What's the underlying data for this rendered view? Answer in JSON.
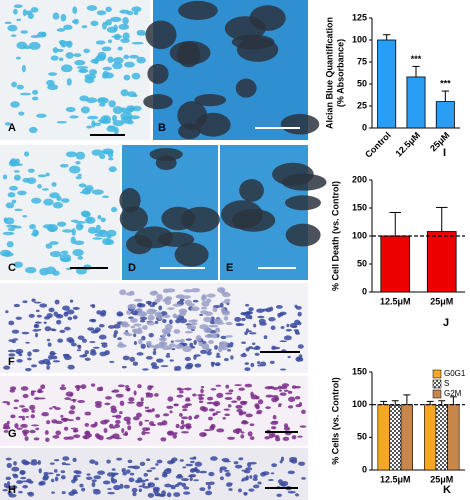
{
  "panel_labels": [
    "A",
    "B",
    "C",
    "D",
    "E",
    "F",
    "G",
    "H"
  ],
  "chart_data": [
    {
      "type": "bar",
      "panel": "I",
      "ylabel": [
        "Alcian Blue Quantification",
        "(% Absorbance)"
      ],
      "categories": [
        "Control",
        "12.5μM",
        "25μM"
      ],
      "values": [
        100,
        58,
        30
      ],
      "errors": [
        6,
        12,
        12
      ],
      "value_annotations": [
        null,
        "***",
        "***"
      ],
      "color": "#2a9df4",
      "ylim": [
        0,
        125
      ],
      "yticks": [
        0,
        25,
        50,
        75,
        100,
        125
      ]
    },
    {
      "type": "bar",
      "panel": "J",
      "ylabel": "% Cell Death (vs. Control)",
      "categories": [
        "12.5μM",
        "25μM"
      ],
      "values": [
        100,
        108
      ],
      "errors": [
        42,
        43
      ],
      "color": "#ee0000",
      "refline": 100,
      "ylim": [
        0,
        200
      ],
      "yticks": [
        0,
        50,
        100,
        150,
        200
      ]
    },
    {
      "type": "grouped_bar",
      "panel": "K",
      "ylabel": "% Cells (vs. Control)",
      "categories": [
        "12.5μM",
        "25μM"
      ],
      "series": [
        {
          "name": "G0G1",
          "color": "#f5a623",
          "values": [
            100,
            100
          ],
          "errors": [
            5,
            5
          ]
        },
        {
          "name": "S",
          "color": "#e6c27a",
          "values": [
            99,
            99
          ],
          "errors": [
            7,
            7
          ]
        },
        {
          "name": "G2M",
          "color": "#c8864a",
          "values": [
            100,
            100
          ],
          "errors": [
            15,
            12
          ]
        }
      ],
      "refline": 100,
      "legend": "top-right",
      "ylim": [
        0,
        150
      ],
      "yticks": [
        0,
        50,
        100,
        150
      ]
    }
  ]
}
